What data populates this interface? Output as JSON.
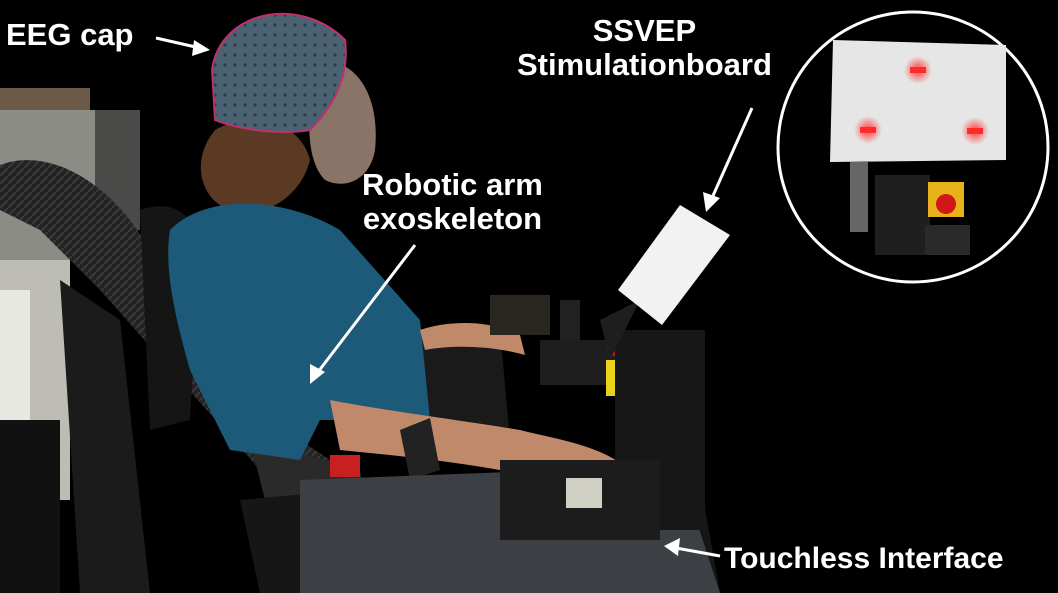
{
  "labels": {
    "eeg_cap": "EEG cap",
    "ssvep_line1": "SSVEP",
    "ssvep_line2": "Stimulationboard",
    "arm_line1": "Robotic arm",
    "arm_line2": "exoskeleton",
    "touchless": "Touchless Interface"
  },
  "colors": {
    "background": "#000000",
    "label": "#ffffff",
    "shirt": "#1d5a7a",
    "exoskeleton": "#2a2a2a",
    "cap": "#4a6070",
    "led": "#ff2a2a"
  }
}
